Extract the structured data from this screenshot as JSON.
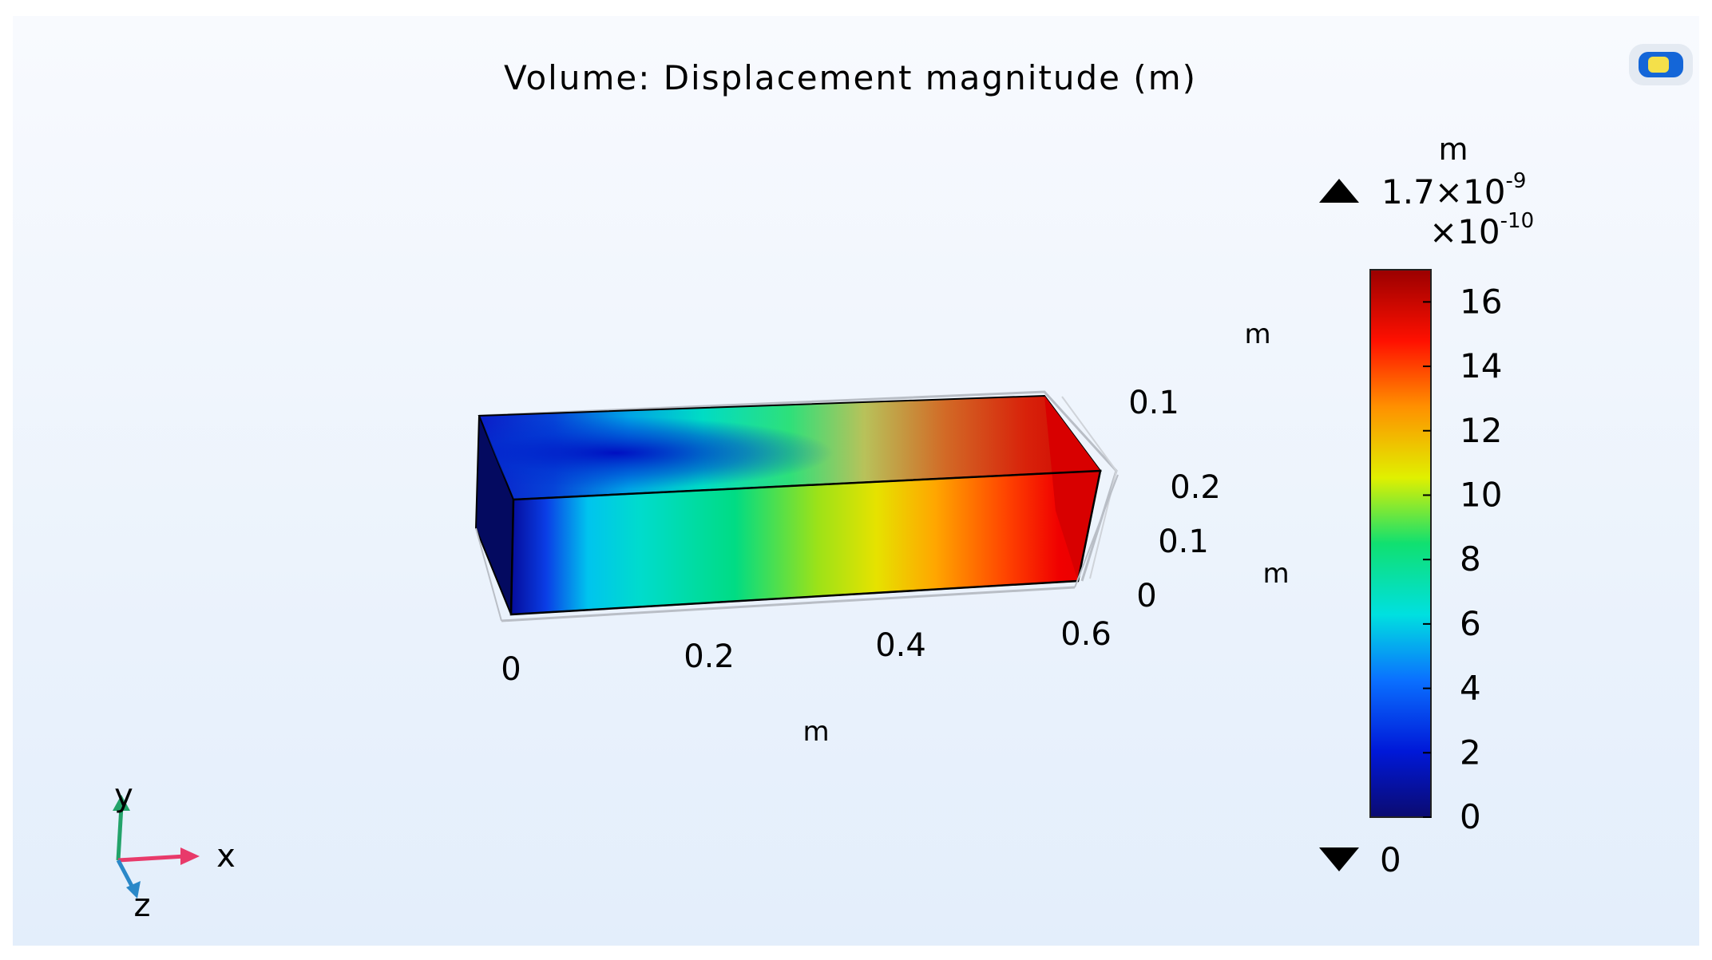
{
  "plot": {
    "title": "Volume: Displacement magnitude (m)",
    "view_icon": "camera-view-icon"
  },
  "chart_data": {
    "type": "heatmap",
    "variable": "Displacement magnitude",
    "unit": "m",
    "color_range": {
      "min": 0,
      "max": 1.7e-09
    },
    "geometry": "rectangular block",
    "axes": {
      "x": {
        "label": "m",
        "ticks": [
          "0",
          "0.2",
          "0.4",
          "0.6"
        ],
        "range": [
          0,
          0.6
        ]
      },
      "y": {
        "label": "m",
        "ticks": [
          "0.1"
        ]
      },
      "z": {
        "label": "m",
        "ticks": [
          "0.2",
          "0.1",
          "0"
        ],
        "range": [
          0,
          0.2
        ]
      }
    },
    "colorbar": {
      "unit": "m",
      "max_label": "1.7×10",
      "max_exponent": "-9",
      "scale_label": "×10",
      "scale_exponent": "-10",
      "min_label": "0",
      "ticks": [
        {
          "value": 16,
          "label": "16"
        },
        {
          "value": 14,
          "label": "14"
        },
        {
          "value": 12,
          "label": "12"
        },
        {
          "value": 10,
          "label": "10"
        },
        {
          "value": 8,
          "label": "8"
        },
        {
          "value": 6,
          "label": "6"
        },
        {
          "value": 4,
          "label": "4"
        },
        {
          "value": 2,
          "label": "2"
        },
        {
          "value": 0,
          "label": "0"
        }
      ],
      "range": [
        0,
        17
      ],
      "colormap": "rainbow"
    }
  },
  "triad": {
    "x": "x",
    "y": "y",
    "z": "z"
  }
}
